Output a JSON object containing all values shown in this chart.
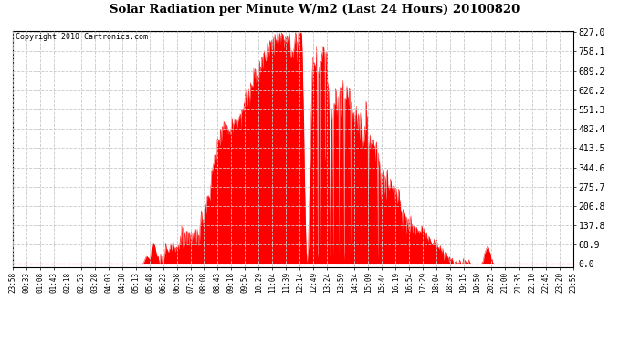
{
  "title": "Solar Radiation per Minute W/m2 (Last 24 Hours) 20100820",
  "copyright": "Copyright 2010 Cartronics.com",
  "fill_color": "#ff0000",
  "line_color": "#ff0000",
  "dashed_line_color": "#ff0000",
  "grid_color": "#c8c8c8",
  "background_color": "#ffffff",
  "ytick_labels": [
    "0.0",
    "68.9",
    "137.8",
    "206.8",
    "275.7",
    "344.6",
    "413.5",
    "482.4",
    "551.3",
    "620.2",
    "689.2",
    "758.1",
    "827.0"
  ],
  "ytick_values": [
    0.0,
    68.9,
    137.8,
    206.8,
    275.7,
    344.6,
    413.5,
    482.4,
    551.3,
    620.2,
    689.2,
    758.1,
    827.0
  ],
  "ymax": 827.0,
  "ymin": 0.0,
  "xtick_labels": [
    "23:58",
    "00:33",
    "01:08",
    "01:43",
    "02:18",
    "02:53",
    "03:28",
    "04:03",
    "04:38",
    "05:13",
    "05:48",
    "06:23",
    "06:58",
    "07:33",
    "08:08",
    "08:43",
    "09:18",
    "09:54",
    "10:29",
    "11:04",
    "11:39",
    "12:14",
    "12:49",
    "13:24",
    "13:59",
    "14:34",
    "15:09",
    "15:44",
    "16:19",
    "16:54",
    "17:29",
    "18:04",
    "18:39",
    "19:15",
    "19:50",
    "20:25",
    "21:00",
    "21:35",
    "22:10",
    "22:45",
    "23:20",
    "23:55"
  ],
  "num_points": 1440
}
